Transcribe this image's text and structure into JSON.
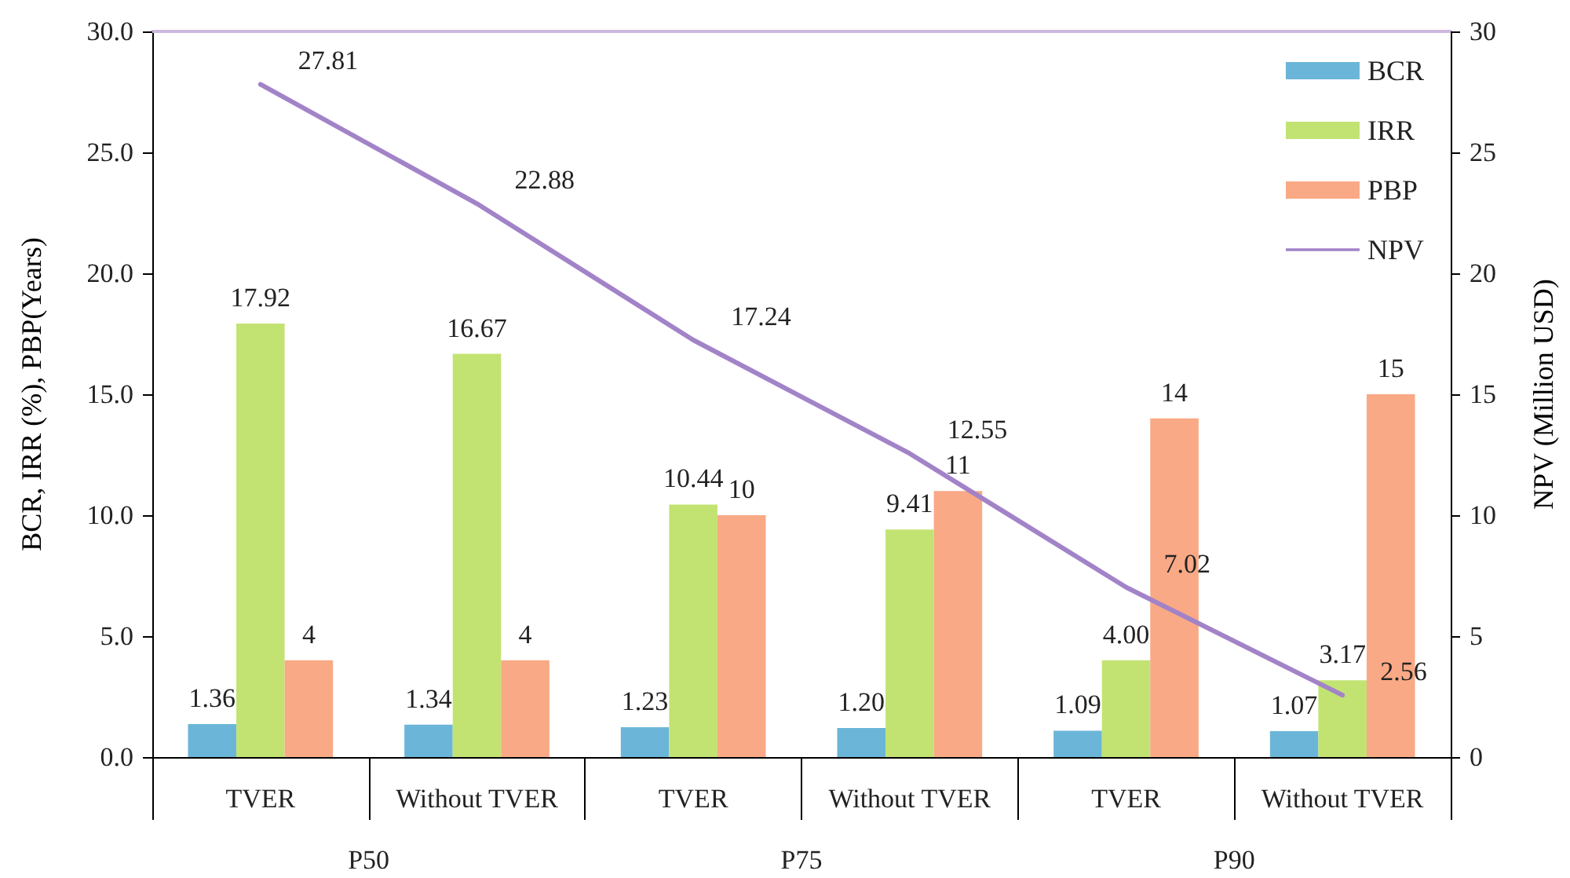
{
  "chart_data": {
    "type": "bar",
    "categories": [
      "TVER",
      "Without TVER",
      "TVER",
      "Without TVER",
      "TVER",
      "Without TVER"
    ],
    "annotations": [
      "P50",
      "P75",
      "P90"
    ],
    "ylabel": "BCR, IRR (%), PBP(Years)",
    "y2label": "NPV (Million USD)",
    "ylim": [
      0,
      30
    ],
    "yticks": [
      {
        "value": 0,
        "label": "0.0"
      },
      {
        "value": 5,
        "label": "5.0"
      },
      {
        "value": 10,
        "label": "10.0"
      },
      {
        "value": 15,
        "label": "15.0"
      },
      {
        "value": 20,
        "label": "20.0"
      },
      {
        "value": 25,
        "label": "25.0"
      },
      {
        "value": 30,
        "label": "30.0"
      }
    ],
    "y2lim": [
      0,
      30
    ],
    "y2ticks": [
      0,
      5,
      10,
      15,
      20,
      25,
      30
    ],
    "legend": "top right",
    "grid": false,
    "marker": "none",
    "line_style": "solid",
    "series": [
      {
        "name": "BCR",
        "color": "#6bb6d8",
        "values": [
          1.36,
          1.34,
          1.23,
          1.2,
          1.09,
          1.07
        ],
        "value_labels": [
          "1.36",
          "1.34",
          "1.23",
          "1.20",
          "1.09",
          "1.07"
        ]
      },
      {
        "name": "IRR",
        "color": "#c2e372",
        "values": [
          17.92,
          16.67,
          10.44,
          9.41,
          4.0,
          3.17
        ],
        "value_labels": [
          "17.92",
          "16.67",
          "10.44",
          "9.41",
          "4.00",
          "3.17"
        ]
      },
      {
        "name": "PBP",
        "color": "#f9a985",
        "values": [
          4,
          4,
          10,
          11,
          14,
          15
        ],
        "value_labels": [
          "4",
          "4",
          "10",
          "11",
          "14",
          "15"
        ]
      },
      {
        "name": "NPV",
        "type": "line",
        "axis": "y2",
        "color": "#a283c8",
        "values": [
          27.81,
          22.88,
          17.24,
          12.55,
          7.02,
          2.56
        ],
        "value_labels": [
          "27.81",
          "22.88",
          "17.24",
          "12.55",
          "7.02",
          "2.56"
        ]
      }
    ]
  }
}
